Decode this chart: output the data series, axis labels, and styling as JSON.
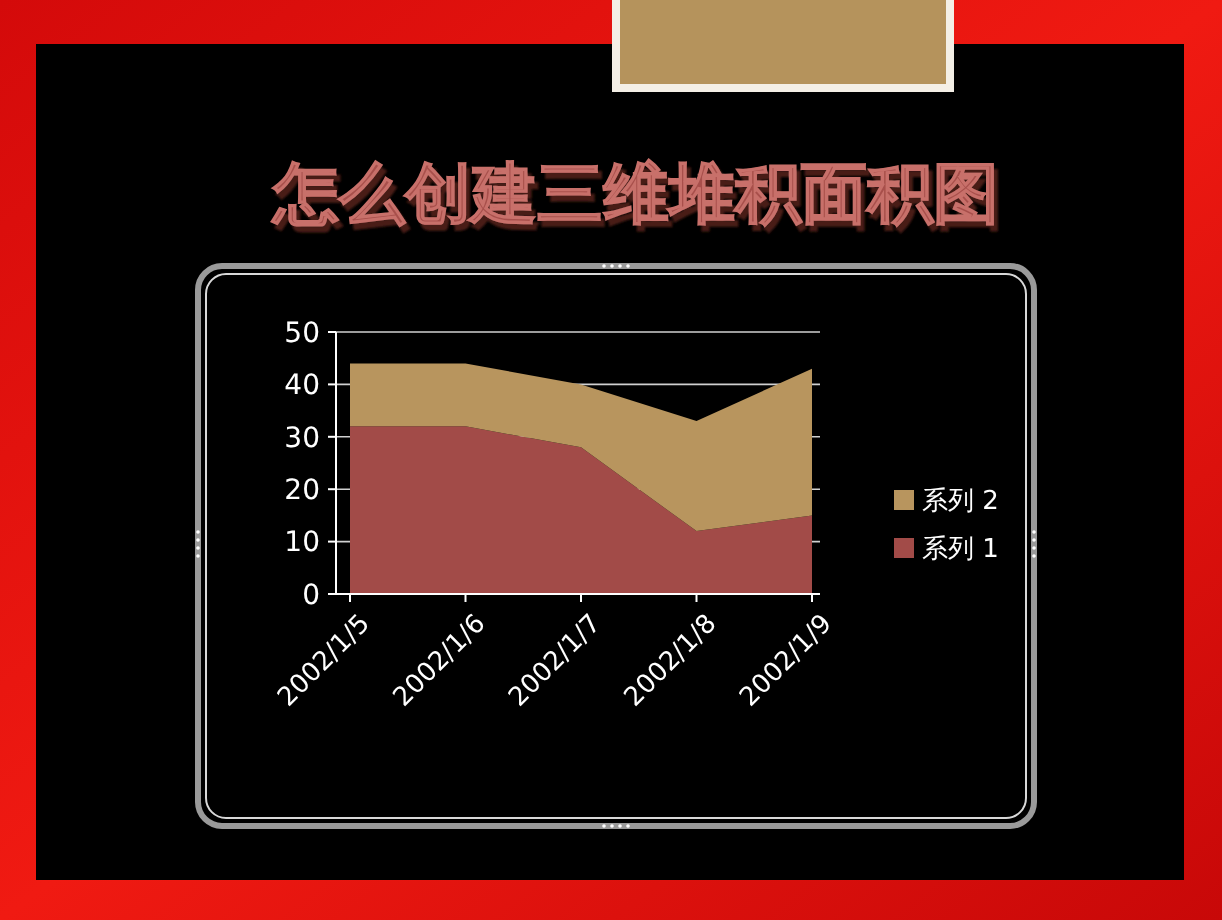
{
  "chart_data": {
    "type": "area",
    "title": "怎么创建三维堆积面积图",
    "categories": [
      "2002/1/5",
      "2002/1/6",
      "2002/1/7",
      "2002/1/8",
      "2002/1/9"
    ],
    "series": [
      {
        "name": "系列 1",
        "color": "#a24b48",
        "values": [
          32,
          32,
          28,
          12,
          15
        ]
      },
      {
        "name": "系列 2",
        "color": "#b8955e",
        "values": [
          12,
          12,
          12,
          21,
          28
        ]
      }
    ],
    "stacked": true,
    "ylim": [
      0,
      50
    ],
    "yticks": [
      0,
      10,
      20,
      30,
      40,
      50
    ],
    "grid": "y",
    "legend": "right"
  }
}
